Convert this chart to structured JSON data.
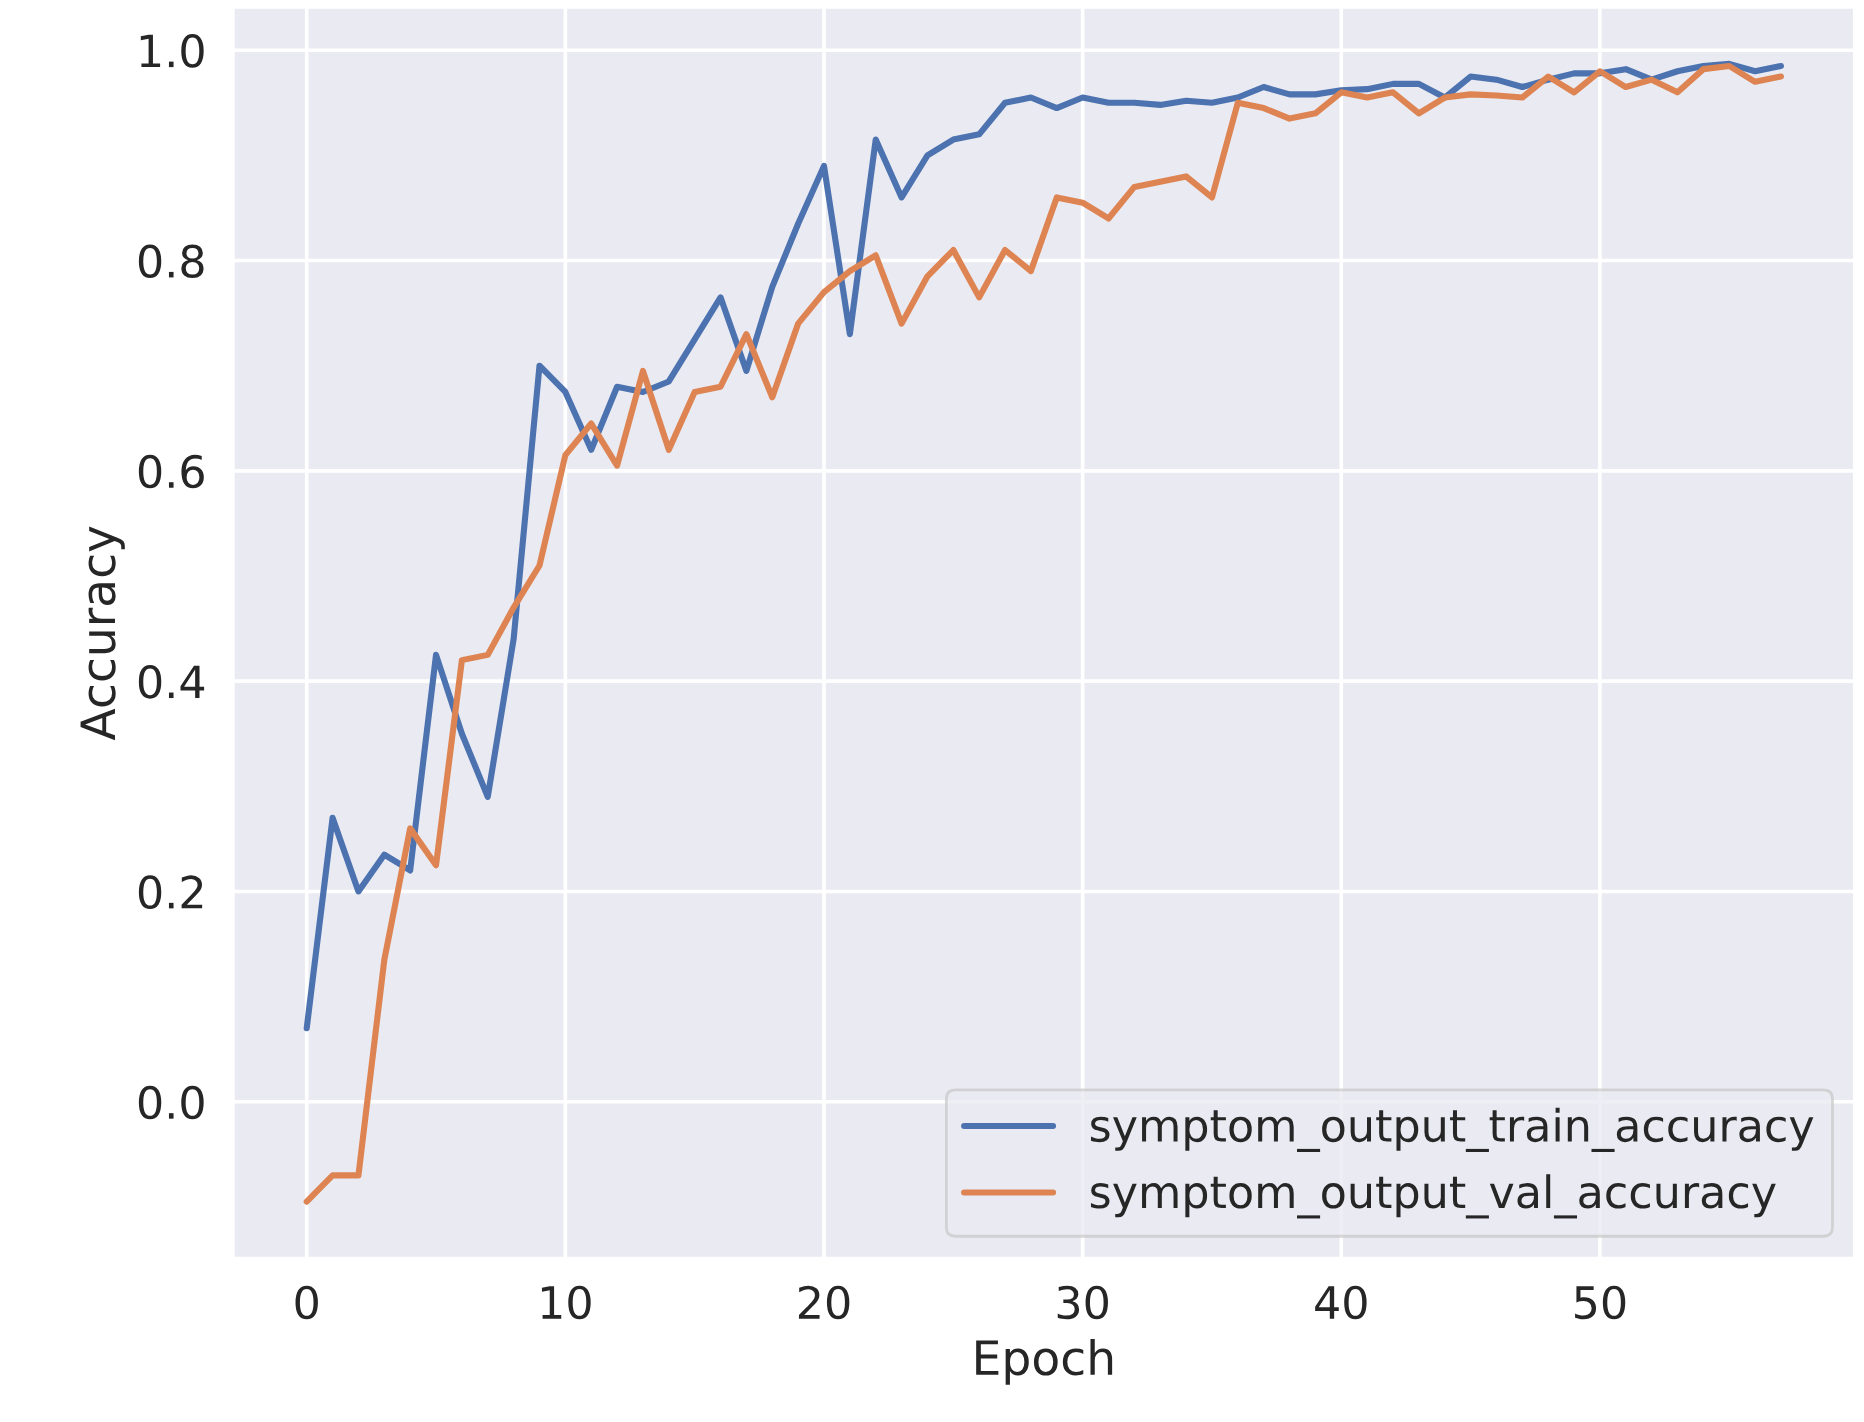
{
  "chart_data": {
    "type": "line",
    "xlabel": "Epoch",
    "ylabel": "Accuracy",
    "x": [
      0,
      1,
      2,
      3,
      4,
      5,
      6,
      7,
      8,
      9,
      10,
      11,
      12,
      13,
      14,
      15,
      16,
      17,
      18,
      19,
      20,
      21,
      22,
      23,
      24,
      25,
      26,
      27,
      28,
      29,
      30,
      31,
      32,
      33,
      34,
      35,
      36,
      37,
      38,
      39,
      40,
      41,
      42,
      43,
      44,
      45,
      46,
      47,
      48,
      49,
      50,
      51,
      52,
      53,
      54,
      55,
      56,
      57
    ],
    "series": [
      {
        "name": "symptom_output_train_accuracy",
        "color": "#4c72b0",
        "values": [
          0.07,
          0.27,
          0.2,
          0.235,
          0.22,
          0.425,
          0.35,
          0.29,
          0.44,
          0.7,
          0.675,
          0.62,
          0.68,
          0.675,
          0.685,
          0.725,
          0.765,
          0.695,
          0.775,
          0.835,
          0.89,
          0.73,
          0.915,
          0.86,
          0.9,
          0.915,
          0.92,
          0.95,
          0.955,
          0.945,
          0.955,
          0.95,
          0.95,
          0.948,
          0.952,
          0.95,
          0.955,
          0.965,
          0.958,
          0.958,
          0.962,
          0.963,
          0.968,
          0.968,
          0.955,
          0.975,
          0.972,
          0.965,
          0.972,
          0.978,
          0.978,
          0.982,
          0.972,
          0.98,
          0.985,
          0.987,
          0.98,
          0.985
        ]
      },
      {
        "name": "symptom_output_val_accuracy",
        "color": "#dd8452",
        "values": [
          -0.095,
          -0.07,
          -0.07,
          0.135,
          0.26,
          0.225,
          0.42,
          0.425,
          0.47,
          0.51,
          0.615,
          0.645,
          0.605,
          0.695,
          0.62,
          0.675,
          0.68,
          0.73,
          0.67,
          0.74,
          0.77,
          0.79,
          0.805,
          0.74,
          0.785,
          0.81,
          0.765,
          0.81,
          0.79,
          0.86,
          0.855,
          0.84,
          0.87,
          0.875,
          0.88,
          0.86,
          0.95,
          0.945,
          0.935,
          0.94,
          0.96,
          0.955,
          0.96,
          0.94,
          0.955,
          0.958,
          0.957,
          0.955,
          0.975,
          0.96,
          0.98,
          0.965,
          0.972,
          0.96,
          0.982,
          0.985,
          0.97,
          0.975
        ]
      }
    ],
    "xlim": [
      -2.85,
      59.85
    ],
    "xticks": [
      0,
      10,
      20,
      30,
      40,
      50
    ],
    "ylim": [
      -0.149,
      1.041
    ],
    "yticks": [
      {
        "value": 0,
        "label": "0.0"
      },
      {
        "value": 0.2,
        "label": "0.2"
      },
      {
        "value": 0.4,
        "label": "0.4"
      },
      {
        "value": 0.6,
        "label": "0.6"
      },
      {
        "value": 0.8,
        "label": "0.8"
      },
      {
        "value": 1,
        "label": "1.0"
      }
    ],
    "grid": true,
    "legend": "lower right"
  }
}
